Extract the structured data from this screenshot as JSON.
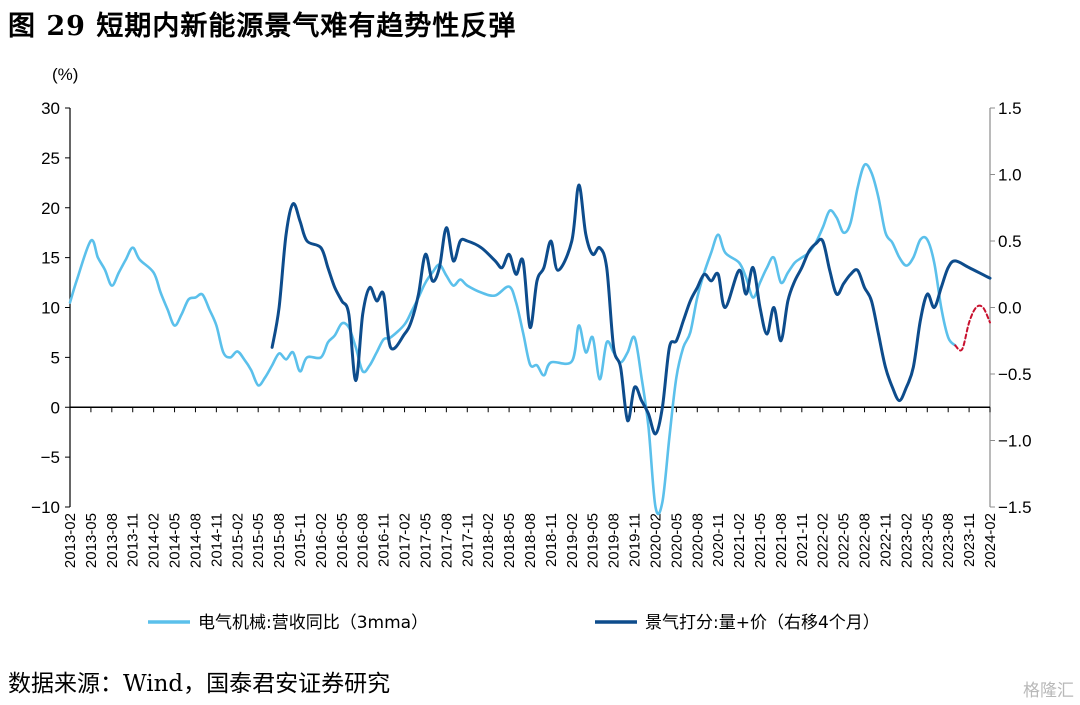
{
  "title": "图 29 短期内新能源景气难有趋势性反弹",
  "source": "数据来源：Wind，国泰君安证券研究",
  "watermark": "格隆汇",
  "colors": {
    "series1": "#5bc0eb",
    "series2": "#0d4c8c",
    "forecast": "#c8102e",
    "axis": "#000000",
    "right_axis": "#8c8c8c"
  },
  "chart_data": {
    "type": "line",
    "unit_label": "(%)",
    "xlim": [
      "2013-02",
      "2024-02"
    ],
    "x_ticks": [
      "2013-02",
      "2013-05",
      "2013-08",
      "2013-11",
      "2014-02",
      "2014-05",
      "2014-08",
      "2014-11",
      "2015-02",
      "2015-05",
      "2015-08",
      "2015-11",
      "2016-02",
      "2016-05",
      "2016-08",
      "2016-11",
      "2017-02",
      "2017-05",
      "2017-08",
      "2017-11",
      "2018-02",
      "2018-05",
      "2018-08",
      "2018-11",
      "2019-02",
      "2019-05",
      "2019-08",
      "2019-11",
      "2020-02",
      "2020-05",
      "2020-08",
      "2020-11",
      "2021-02",
      "2021-05",
      "2021-08",
      "2021-11",
      "2022-02",
      "2022-05",
      "2022-08",
      "2022-11",
      "2023-02",
      "2023-05",
      "2023-08",
      "2023-11",
      "2024-02"
    ],
    "y_left": {
      "min": -10,
      "max": 30,
      "ticks": [
        "30",
        "25",
        "20",
        "15",
        "10",
        "5",
        "0",
        "−5",
        "−10"
      ]
    },
    "y_right": {
      "min": -1.5,
      "max": 1.5,
      "ticks": [
        "1.5",
        "1.0",
        "0.5",
        "0.0",
        "−0.5",
        "−1.0",
        "−1.5"
      ]
    },
    "legend_position": "bottom",
    "series": [
      {
        "name": "电气机械:营收同比（3mma）",
        "axis": "left",
        "points": [
          [
            "2013-02",
            10.5
          ],
          [
            "2013-03",
            12.8
          ],
          [
            "2013-05",
            16.7
          ],
          [
            "2013-06",
            15.0
          ],
          [
            "2013-07",
            13.8
          ],
          [
            "2013-08",
            12.2
          ],
          [
            "2013-09",
            13.5
          ],
          [
            "2013-10",
            14.8
          ],
          [
            "2013-11",
            16.0
          ],
          [
            "2013-12",
            14.8
          ],
          [
            "2014-02",
            13.5
          ],
          [
            "2014-03",
            11.5
          ],
          [
            "2014-04",
            9.8
          ],
          [
            "2014-05",
            8.2
          ],
          [
            "2014-06",
            9.3
          ],
          [
            "2014-07",
            10.8
          ],
          [
            "2014-08",
            11.0
          ],
          [
            "2014-09",
            11.3
          ],
          [
            "2014-10",
            9.8
          ],
          [
            "2014-11",
            8.2
          ],
          [
            "2014-12",
            5.5
          ],
          [
            "2015-01",
            5.0
          ],
          [
            "2015-02",
            5.6
          ],
          [
            "2015-03",
            4.8
          ],
          [
            "2015-04",
            3.7
          ],
          [
            "2015-05",
            2.2
          ],
          [
            "2015-06",
            3.0
          ],
          [
            "2015-07",
            4.2
          ],
          [
            "2015-08",
            5.4
          ],
          [
            "2015-09",
            4.8
          ],
          [
            "2015-10",
            5.5
          ],
          [
            "2015-11",
            3.6
          ],
          [
            "2015-12",
            5.0
          ],
          [
            "2016-02",
            5.0
          ],
          [
            "2016-03",
            6.5
          ],
          [
            "2016-04",
            7.2
          ],
          [
            "2016-05",
            8.4
          ],
          [
            "2016-06",
            8.0
          ],
          [
            "2016-07",
            6.0
          ],
          [
            "2016-08",
            3.6
          ],
          [
            "2016-09",
            4.2
          ],
          [
            "2016-10",
            5.5
          ],
          [
            "2016-11",
            6.8
          ],
          [
            "2016-12",
            7.0
          ],
          [
            "2017-02",
            8.3
          ],
          [
            "2017-03",
            9.6
          ],
          [
            "2017-04",
            11.0
          ],
          [
            "2017-05",
            12.5
          ],
          [
            "2017-06",
            13.5
          ],
          [
            "2017-07",
            14.3
          ],
          [
            "2017-08",
            13.2
          ],
          [
            "2017-09",
            12.2
          ],
          [
            "2017-10",
            12.8
          ],
          [
            "2017-11",
            12.2
          ],
          [
            "2018-01",
            11.5
          ],
          [
            "2018-03",
            11.2
          ],
          [
            "2018-05",
            12.1
          ],
          [
            "2018-06",
            10.5
          ],
          [
            "2018-07",
            7.5
          ],
          [
            "2018-08",
            4.3
          ],
          [
            "2018-09",
            4.2
          ],
          [
            "2018-10",
            3.2
          ],
          [
            "2018-11",
            4.5
          ],
          [
            "2019-02",
            4.6
          ],
          [
            "2019-03",
            8.2
          ],
          [
            "2019-04",
            5.5
          ],
          [
            "2019-05",
            7.0
          ],
          [
            "2019-06",
            2.8
          ],
          [
            "2019-07",
            6.5
          ],
          [
            "2019-08",
            5.5
          ],
          [
            "2019-09",
            4.5
          ],
          [
            "2019-10",
            5.5
          ],
          [
            "2019-11",
            7.0
          ],
          [
            "2019-12",
            3.0
          ],
          [
            "2020-01",
            -2.0
          ],
          [
            "2020-02",
            -10.0
          ],
          [
            "2020-03",
            -9.5
          ],
          [
            "2020-04",
            -3.0
          ],
          [
            "2020-05",
            3.0
          ],
          [
            "2020-06",
            6.0
          ],
          [
            "2020-07",
            7.5
          ],
          [
            "2020-08",
            11.0
          ],
          [
            "2020-09",
            13.5
          ],
          [
            "2020-10",
            15.5
          ],
          [
            "2020-11",
            17.3
          ],
          [
            "2020-12",
            15.5
          ],
          [
            "2021-02",
            14.5
          ],
          [
            "2021-03",
            13.0
          ],
          [
            "2021-04",
            11.0
          ],
          [
            "2021-05",
            12.5
          ],
          [
            "2021-06",
            14.0
          ],
          [
            "2021-07",
            15.0
          ],
          [
            "2021-08",
            12.5
          ],
          [
            "2021-09",
            13.5
          ],
          [
            "2021-10",
            14.5
          ],
          [
            "2021-11",
            15.0
          ],
          [
            "2021-12",
            15.5
          ],
          [
            "2022-01",
            16.5
          ],
          [
            "2022-02",
            18.0
          ],
          [
            "2022-03",
            19.7
          ],
          [
            "2022-04",
            19.0
          ],
          [
            "2022-05",
            17.5
          ],
          [
            "2022-06",
            18.5
          ],
          [
            "2022-07",
            22.0
          ],
          [
            "2022-08",
            24.3
          ],
          [
            "2022-09",
            23.5
          ],
          [
            "2022-10",
            21.0
          ],
          [
            "2022-11",
            17.5
          ],
          [
            "2022-12",
            16.5
          ],
          [
            "2023-01",
            15.0
          ],
          [
            "2023-02",
            14.2
          ],
          [
            "2023-03",
            15.0
          ],
          [
            "2023-04",
            16.8
          ],
          [
            "2023-05",
            16.8
          ],
          [
            "2023-06",
            14.5
          ],
          [
            "2023-07",
            10.0
          ],
          [
            "2023-08",
            7.0
          ],
          [
            "2023-09",
            6.2
          ]
        ]
      },
      {
        "name": "景气打分:量+价（右移4个月）",
        "axis": "right",
        "points": [
          [
            "2015-07",
            -0.3
          ],
          [
            "2015-08",
            0.0
          ],
          [
            "2015-09",
            0.55
          ],
          [
            "2015-10",
            0.78
          ],
          [
            "2015-11",
            0.65
          ],
          [
            "2015-12",
            0.5
          ],
          [
            "2016-02",
            0.45
          ],
          [
            "2016-03",
            0.3
          ],
          [
            "2016-04",
            0.15
          ],
          [
            "2016-05",
            0.05
          ],
          [
            "2016-06",
            -0.05
          ],
          [
            "2016-07",
            -0.55
          ],
          [
            "2016-08",
            -0.05
          ],
          [
            "2016-09",
            0.15
          ],
          [
            "2016-10",
            0.05
          ],
          [
            "2016-11",
            0.1
          ],
          [
            "2016-12",
            -0.3
          ],
          [
            "2017-02",
            -0.2
          ],
          [
            "2017-03",
            -0.1
          ],
          [
            "2017-04",
            0.1
          ],
          [
            "2017-05",
            0.4
          ],
          [
            "2017-06",
            0.2
          ],
          [
            "2017-07",
            0.3
          ],
          [
            "2017-08",
            0.6
          ],
          [
            "2017-09",
            0.35
          ],
          [
            "2017-10",
            0.5
          ],
          [
            "2017-11",
            0.5
          ],
          [
            "2018-01",
            0.45
          ],
          [
            "2018-03",
            0.35
          ],
          [
            "2018-04",
            0.3
          ],
          [
            "2018-05",
            0.4
          ],
          [
            "2018-06",
            0.25
          ],
          [
            "2018-07",
            0.35
          ],
          [
            "2018-08",
            -0.15
          ],
          [
            "2018-09",
            0.2
          ],
          [
            "2018-10",
            0.3
          ],
          [
            "2018-11",
            0.5
          ],
          [
            "2018-12",
            0.28
          ],
          [
            "2019-02",
            0.5
          ],
          [
            "2019-03",
            0.92
          ],
          [
            "2019-04",
            0.55
          ],
          [
            "2019-05",
            0.4
          ],
          [
            "2019-06",
            0.45
          ],
          [
            "2019-07",
            0.3
          ],
          [
            "2019-08",
            -0.3
          ],
          [
            "2019-09",
            -0.45
          ],
          [
            "2019-10",
            -0.85
          ],
          [
            "2019-11",
            -0.6
          ],
          [
            "2019-12",
            -0.7
          ],
          [
            "2020-01",
            -0.8
          ],
          [
            "2020-02",
            -0.95
          ],
          [
            "2020-03",
            -0.75
          ],
          [
            "2020-04",
            -0.3
          ],
          [
            "2020-05",
            -0.25
          ],
          [
            "2020-06",
            -0.1
          ],
          [
            "2020-07",
            0.05
          ],
          [
            "2020-08",
            0.15
          ],
          [
            "2020-09",
            0.25
          ],
          [
            "2020-10",
            0.2
          ],
          [
            "2020-11",
            0.25
          ],
          [
            "2020-12",
            0.0
          ],
          [
            "2021-02",
            0.28
          ],
          [
            "2021-03",
            0.1
          ],
          [
            "2021-04",
            0.3
          ],
          [
            "2021-05",
            0.0
          ],
          [
            "2021-06",
            -0.2
          ],
          [
            "2021-07",
            0.0
          ],
          [
            "2021-08",
            -0.25
          ],
          [
            "2021-09",
            0.05
          ],
          [
            "2021-10",
            0.2
          ],
          [
            "2021-11",
            0.3
          ],
          [
            "2021-12",
            0.42
          ],
          [
            "2022-01",
            0.48
          ],
          [
            "2022-02",
            0.5
          ],
          [
            "2022-03",
            0.28
          ],
          [
            "2022-04",
            0.1
          ],
          [
            "2022-05",
            0.18
          ],
          [
            "2022-06",
            0.25
          ],
          [
            "2022-07",
            0.28
          ],
          [
            "2022-08",
            0.15
          ],
          [
            "2022-09",
            0.05
          ],
          [
            "2022-10",
            -0.2
          ],
          [
            "2022-11",
            -0.45
          ],
          [
            "2022-12",
            -0.6
          ],
          [
            "2023-01",
            -0.7
          ],
          [
            "2023-02",
            -0.6
          ],
          [
            "2023-03",
            -0.45
          ],
          [
            "2023-04",
            -0.1
          ],
          [
            "2023-05",
            0.1
          ],
          [
            "2023-06",
            0.0
          ],
          [
            "2023-07",
            0.15
          ],
          [
            "2023-08",
            0.3
          ],
          [
            "2023-09",
            0.35
          ],
          [
            "2023-11",
            0.3
          ],
          [
            "2024-02",
            0.22
          ]
        ]
      },
      {
        "name": "",
        "axis": "left",
        "style": "dashed",
        "points": [
          [
            "2023-09",
            6.2
          ],
          [
            "2023-10",
            5.8
          ],
          [
            "2023-11",
            8.5
          ],
          [
            "2023-12",
            10.0
          ],
          [
            "2024-01",
            10.0
          ],
          [
            "2024-02",
            8.5
          ]
        ]
      }
    ]
  }
}
